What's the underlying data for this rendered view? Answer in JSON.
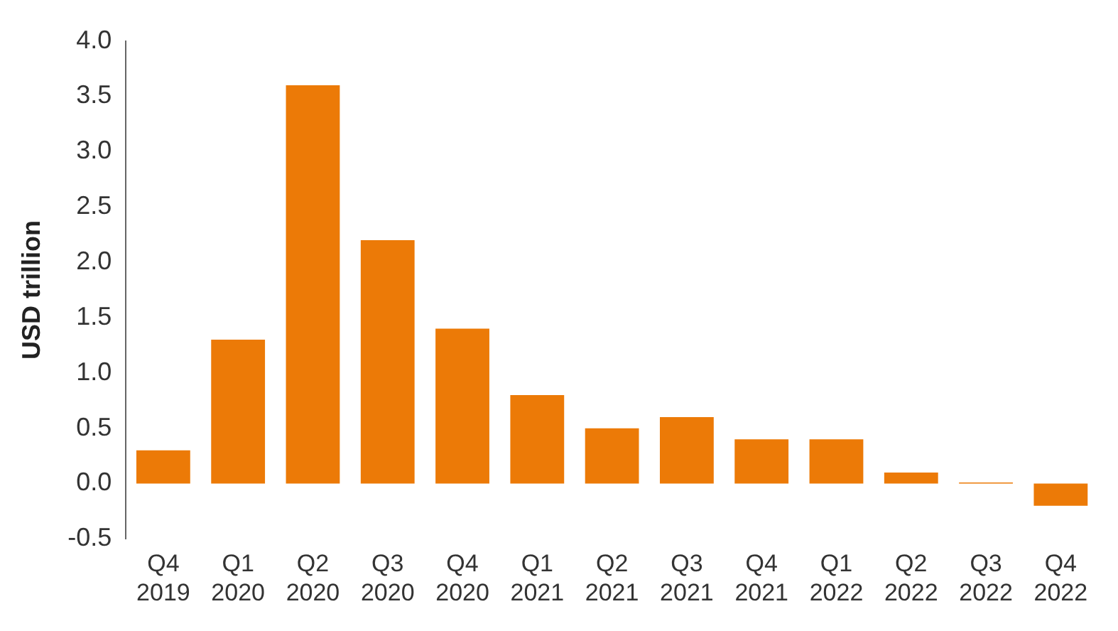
{
  "chart_data": {
    "type": "bar",
    "ylabel": "USD trillion",
    "categories": [
      "Q4 2019",
      "Q1 2020",
      "Q2 2020",
      "Q3 2020",
      "Q4 2020",
      "Q1 2021",
      "Q2 2021",
      "Q3 2021",
      "Q4 2021",
      "Q1 2022",
      "Q2 2022",
      "Q3 2022",
      "Q4 2022"
    ],
    "values": [
      0.3,
      1.3,
      3.6,
      2.2,
      1.4,
      0.8,
      0.5,
      0.6,
      0.4,
      0.4,
      0.1,
      0.01,
      -0.2
    ],
    "color": "#ec7a07",
    "ylim": [
      -0.5,
      4.0
    ],
    "yticks": [
      {
        "value": -0.5,
        "label": "-0.5"
      },
      {
        "value": 0,
        "label": "0.0"
      },
      {
        "value": 0.5,
        "label": "0.5"
      },
      {
        "value": 1,
        "label": "1.0"
      },
      {
        "value": 1.5,
        "label": "1.5"
      },
      {
        "value": 2,
        "label": "2.0"
      },
      {
        "value": 2.5,
        "label": "2.5"
      },
      {
        "value": 3,
        "label": "3.0"
      },
      {
        "value": 3.5,
        "label": "3.5"
      },
      {
        "value": 4,
        "label": "4.0"
      }
    ],
    "grid": false,
    "legend": false
  }
}
